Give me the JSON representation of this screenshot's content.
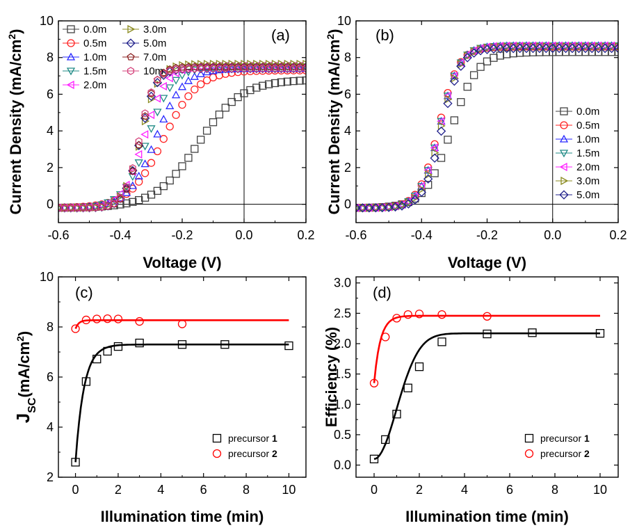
{
  "chart_data": [
    {
      "panel": "(a)",
      "type": "scatter",
      "xlabel": "Voltage (V)",
      "ylabel_parts": [
        "Current Density (mA/cm",
        "2",
        ")"
      ],
      "xlim": [
        -0.6,
        0.2
      ],
      "ylim": [
        -1,
        10
      ],
      "xticks": [
        "-0.6",
        "-0.4",
        "-0.2",
        "0.0",
        "0.2"
      ],
      "yticks": [
        "0",
        "2",
        "4",
        "6",
        "8",
        "10"
      ],
      "reference_lines": {
        "x": 0.0,
        "y": 0.0
      },
      "legend_columns": 2,
      "series": [
        {
          "name": "0.0m",
          "marker": "square",
          "color": "#404040",
          "model": {
            "jsc": 2.6,
            "voc": 0.24,
            "jmax": 7.0,
            "slope": 0.07,
            "vmax_shown": 0.2
          }
        },
        {
          "name": "0.5m",
          "marker": "circle",
          "color": "#ff2020",
          "model": {
            "jsc": 6.0,
            "voc": 0.42,
            "jmax": 7.5,
            "slope": 0.055,
            "vmax_shown": 0.2
          }
        },
        {
          "name": "1.0m",
          "marker": "triangle-up",
          "color": "#2a2aff",
          "model": {
            "jsc": 6.6,
            "voc": 0.46,
            "jmax": 7.6,
            "slope": 0.045,
            "vmax_shown": 0.2
          }
        },
        {
          "name": "1.5m",
          "marker": "triangle-down",
          "color": "#208b86",
          "model": {
            "jsc": 6.95,
            "voc": 0.5,
            "jmax": 7.7,
            "slope": 0.04,
            "vmax_shown": 0.2
          }
        },
        {
          "name": "2.0m",
          "marker": "triangle-left",
          "color": "#ff20ff",
          "model": {
            "jsc": 7.15,
            "voc": 0.52,
            "jmax": 7.75,
            "slope": 0.035,
            "vmax_shown": 0.2
          }
        },
        {
          "name": "3.0m",
          "marker": "triangle-right",
          "color": "#8b8b20",
          "model": {
            "jsc": 7.35,
            "voc": 0.535,
            "jmax": 7.85,
            "slope": 0.028,
            "vmax_shown": 0.2
          }
        },
        {
          "name": "5.0m",
          "marker": "diamond",
          "color": "#20208b",
          "model": {
            "jsc": 7.2,
            "voc": 0.54,
            "jmax": 7.6,
            "slope": 0.025,
            "vmax_shown": 0.2
          }
        },
        {
          "name": "7.0m",
          "marker": "pentagon",
          "color": "#8b2020",
          "model": {
            "jsc": 7.3,
            "voc": 0.54,
            "jmax": 7.7,
            "slope": 0.024,
            "vmax_shown": 0.2
          }
        },
        {
          "name": "10m",
          "marker": "hexagon",
          "color": "#d4407a",
          "model": {
            "jsc": 7.25,
            "voc": 0.545,
            "jmax": 7.6,
            "slope": 0.024,
            "vmax_shown": 0.2
          }
        }
      ]
    },
    {
      "panel": "(b)",
      "type": "scatter",
      "xlabel": "Voltage (V)",
      "ylabel_parts": [
        "Current Density (mA/cm",
        "2",
        ")"
      ],
      "xlim": [
        -0.6,
        0.2
      ],
      "ylim": [
        -1,
        10
      ],
      "xticks": [
        "-0.6",
        "-0.4",
        "-0.2",
        "0.0",
        "0.2"
      ],
      "yticks": [
        "0",
        "2",
        "4",
        "6",
        "8",
        "10"
      ],
      "reference_lines": {
        "x": 0.0,
        "y": 0.0
      },
      "legend_columns": 1,
      "series": [
        {
          "name": "0.0m",
          "marker": "square",
          "color": "#404040",
          "model": {
            "jsc": 7.9,
            "voc": 0.5,
            "jmax": 8.5,
            "slope": 0.04,
            "vmax_shown": 0.2
          }
        },
        {
          "name": "0.5m",
          "marker": "circle",
          "color": "#ff2020",
          "model": {
            "jsc": 8.25,
            "voc": 0.56,
            "jmax": 8.8,
            "slope": 0.03,
            "vmax_shown": 0.2
          }
        },
        {
          "name": "1.0m",
          "marker": "triangle-up",
          "color": "#2a2aff",
          "model": {
            "jsc": 8.3,
            "voc": 0.555,
            "jmax": 8.85,
            "slope": 0.03,
            "vmax_shown": 0.2
          }
        },
        {
          "name": "1.5m",
          "marker": "triangle-down",
          "color": "#208b86",
          "model": {
            "jsc": 8.3,
            "voc": 0.555,
            "jmax": 8.85,
            "slope": 0.03,
            "vmax_shown": 0.2
          }
        },
        {
          "name": "2.0m",
          "marker": "triangle-left",
          "color": "#ff20ff",
          "model": {
            "jsc": 8.3,
            "voc": 0.555,
            "jmax": 8.85,
            "slope": 0.03,
            "vmax_shown": 0.2
          }
        },
        {
          "name": "3.0m",
          "marker": "triangle-right",
          "color": "#8b8b20",
          "model": {
            "jsc": 8.2,
            "voc": 0.55,
            "jmax": 8.8,
            "slope": 0.029,
            "vmax_shown": 0.2
          }
        },
        {
          "name": "5.0m",
          "marker": "diamond",
          "color": "#20208b",
          "model": {
            "jsc": 8.1,
            "voc": 0.545,
            "jmax": 8.7,
            "slope": 0.028,
            "vmax_shown": 0.2
          }
        }
      ]
    },
    {
      "panel": "(c)",
      "type": "line",
      "xlabel": "Illumination time (min)",
      "ylabel_parts": [
        "J",
        "SC",
        "(mA/cm",
        "2",
        ")"
      ],
      "xlim": [
        -0.8,
        10.8
      ],
      "ylim": [
        2,
        10
      ],
      "xticks": [
        "0",
        "2",
        "4",
        "6",
        "8",
        "10"
      ],
      "yticks": [
        "2",
        "4",
        "6",
        "8",
        "10"
      ],
      "series": [
        {
          "name": "precursor ",
          "name_bold": "1",
          "marker": "square",
          "color": "#000000",
          "x": [
            0,
            0.5,
            1,
            1.5,
            2,
            3,
            5,
            7,
            10
          ],
          "y": [
            2.6,
            5.82,
            6.72,
            7.03,
            7.22,
            7.36,
            7.3,
            7.3,
            7.25
          ],
          "fit": {
            "y0": 2.6,
            "plateau": 7.3,
            "tau": 0.4
          }
        },
        {
          "name": "precursor ",
          "name_bold": "2",
          "marker": "circle",
          "color": "#ff0000",
          "x": [
            0,
            0.5,
            1,
            1.5,
            2,
            3,
            5
          ],
          "y": [
            7.93,
            8.28,
            8.32,
            8.33,
            8.32,
            8.22,
            8.12
          ],
          "fit": {
            "y0": 7.93,
            "plateau": 8.27,
            "tau": 0.15
          }
        }
      ]
    },
    {
      "panel": "(d)",
      "type": "line",
      "xlabel": "Illumination time (min)",
      "ylabel_parts": [
        "Efficiency (%)"
      ],
      "xlim": [
        -0.8,
        10.8
      ],
      "ylim": [
        -0.2,
        3.1
      ],
      "xticks": [
        "0",
        "2",
        "4",
        "6",
        "8",
        "10"
      ],
      "yticks": [
        "0.0",
        "0.5",
        "1.0",
        "1.5",
        "2.0",
        "2.5",
        "3.0"
      ],
      "series": [
        {
          "name": "precursor ",
          "name_bold": "1",
          "marker": "square",
          "color": "#000000",
          "x": [
            0,
            0.5,
            1,
            1.5,
            2,
            3,
            5,
            7,
            10
          ],
          "y": [
            0.1,
            0.42,
            0.84,
            1.27,
            1.62,
            2.03,
            2.16,
            2.18,
            2.17
          ],
          "fit": {
            "y0": 0.1,
            "plateau": 2.17,
            "sigma": 1.4
          }
        },
        {
          "name": "precursor ",
          "name_bold": "2",
          "marker": "circle",
          "color": "#ff0000",
          "x": [
            0,
            0.5,
            1,
            1.5,
            2,
            3,
            5
          ],
          "y": [
            1.35,
            2.11,
            2.42,
            2.48,
            2.49,
            2.48,
            2.45
          ],
          "fit": {
            "y0": 1.35,
            "plateau": 2.46,
            "tau": 0.28
          }
        }
      ]
    }
  ]
}
